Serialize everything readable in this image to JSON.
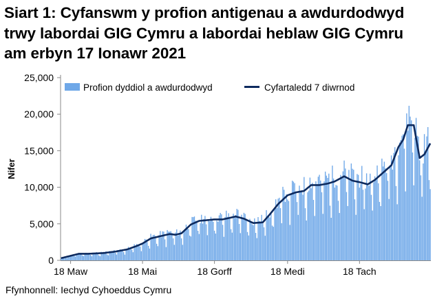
{
  "title_lines": [
    "Siart 1: Cyfanswm y profion antigenau a awdurdodwyd",
    "trwy labordai GIG Cymru a labordai heblaw GIG Cymru",
    "am erbyn 17 Ionawr 2021"
  ],
  "source": "Ffynhonnell: Iechyd Cyhoeddus Cymru",
  "chart_data": {
    "type": "bar",
    "ylabel": "Nifer",
    "xlabel": "",
    "ylim": [
      0,
      25000
    ],
    "y_ticks": [
      "0",
      "5,000",
      "10,000",
      "15,000",
      "20,000",
      "25,000"
    ],
    "x_tick_labels": [
      "18 Maw",
      "18 Mai",
      "18 Gorff",
      "18 Medi",
      "18 Tach"
    ],
    "legend_position": "top",
    "grid": false,
    "colors": {
      "bars": "#6fa8e8",
      "line": "#0d2a5e"
    },
    "series": [
      {
        "name": "Profion dyddiol a awdurdodwyd",
        "type": "bar"
      },
      {
        "name": "Cyfartaledd 7 diwrnod",
        "type": "line"
      }
    ],
    "trend": {
      "start_date": "2020-03-10",
      "end_date": "2021-01-17",
      "dates": [
        "2020-03-10",
        "2020-03-20",
        "2020-03-25",
        "2020-04-02",
        "2020-04-15",
        "2020-04-25",
        "2020-05-05",
        "2020-05-12",
        "2020-05-18",
        "2020-05-25",
        "2020-06-02",
        "2020-06-10",
        "2020-06-15",
        "2020-06-20",
        "2020-06-28",
        "2020-07-05",
        "2020-07-12",
        "2020-07-18",
        "2020-07-25",
        "2020-08-05",
        "2020-08-12",
        "2020-08-20",
        "2020-08-28",
        "2020-09-03",
        "2020-09-10",
        "2020-09-18",
        "2020-09-25",
        "2020-10-02",
        "2020-10-08",
        "2020-10-15",
        "2020-10-22",
        "2020-10-28",
        "2020-11-05",
        "2020-11-12",
        "2020-11-18",
        "2020-11-25",
        "2020-12-01",
        "2020-12-08",
        "2020-12-15",
        "2020-12-21",
        "2020-12-25",
        "2020-12-29",
        "2021-01-03",
        "2021-01-08",
        "2021-01-12",
        "2021-01-17"
      ],
      "avg": [
        300,
        700,
        900,
        900,
        1000,
        1200,
        1500,
        1900,
        2300,
        3000,
        3300,
        3600,
        3500,
        3700,
        4900,
        5400,
        5500,
        5600,
        5600,
        6000,
        5700,
        5100,
        5200,
        6300,
        7700,
        8900,
        9300,
        9500,
        10300,
        10300,
        10500,
        10800,
        11500,
        10900,
        10700,
        10400,
        11000,
        12000,
        13000,
        15500,
        16500,
        18500,
        18500,
        14000,
        14500,
        16000
      ]
    }
  }
}
